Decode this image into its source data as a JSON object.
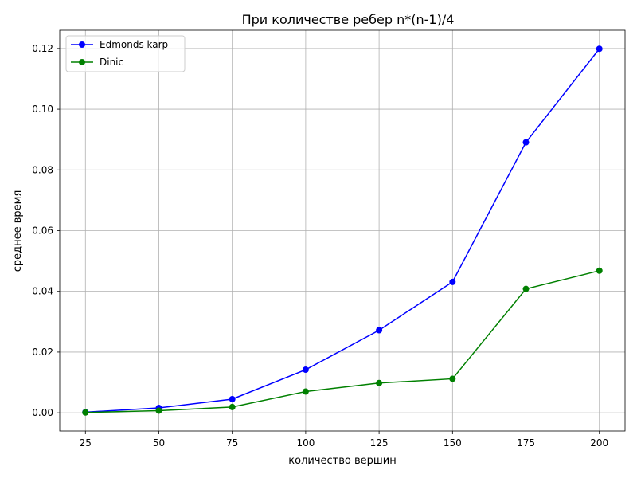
{
  "chart_data": {
    "type": "line",
    "title": "При количестве ребер n*(n-1)/4",
    "xlabel": "количество вершин",
    "ylabel": "среднее время",
    "x": [
      25,
      50,
      75,
      100,
      125,
      150,
      175,
      200
    ],
    "xlim": [
      16.25,
      208.75
    ],
    "ylim": [
      -0.006,
      0.126
    ],
    "xticks": [
      25,
      50,
      75,
      100,
      125,
      150,
      175,
      200
    ],
    "yticks": [
      0.0,
      0.02,
      0.04,
      0.06,
      0.08,
      0.1,
      0.12
    ],
    "ytick_labels": [
      "0.00",
      "0.02",
      "0.04",
      "0.06",
      "0.08",
      "0.10",
      "0.12"
    ],
    "grid": true,
    "legend_position": "upper-left",
    "series": [
      {
        "name": "Edmonds karp",
        "color": "#0000ff",
        "marker": "circle",
        "values": [
          0.0002,
          0.0016,
          0.0045,
          0.0142,
          0.0272,
          0.0431,
          0.0891,
          0.1199
        ]
      },
      {
        "name": "Dinic",
        "color": "#008000",
        "marker": "circle",
        "values": [
          0.0001,
          0.0007,
          0.0019,
          0.007,
          0.0098,
          0.0112,
          0.0408,
          0.0468
        ]
      }
    ]
  }
}
